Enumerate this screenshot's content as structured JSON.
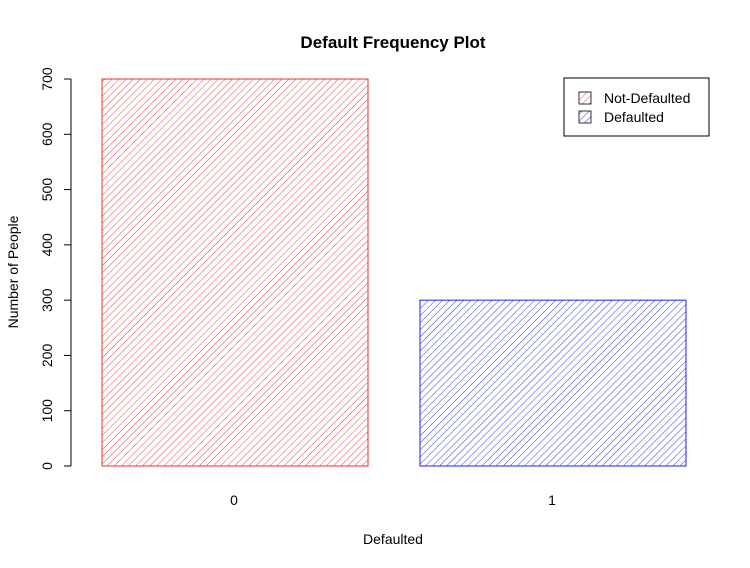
{
  "chart_data": {
    "type": "bar",
    "title": "Default Frequency Plot",
    "xlabel": "Defaulted",
    "ylabel": "Number of People",
    "categories": [
      "0",
      "1"
    ],
    "values": [
      700,
      300
    ],
    "ylim": [
      0,
      700
    ],
    "yticks": [
      "0",
      "100",
      "200",
      "300",
      "400",
      "500",
      "600",
      "700"
    ],
    "colors": [
      "#e8312f",
      "#2323e8"
    ],
    "fill_pattern": "diagonal-hatch",
    "grid": false,
    "legend": {
      "position": "top-right",
      "entries": [
        "Not-Defaulted",
        "Defaulted"
      ]
    }
  }
}
